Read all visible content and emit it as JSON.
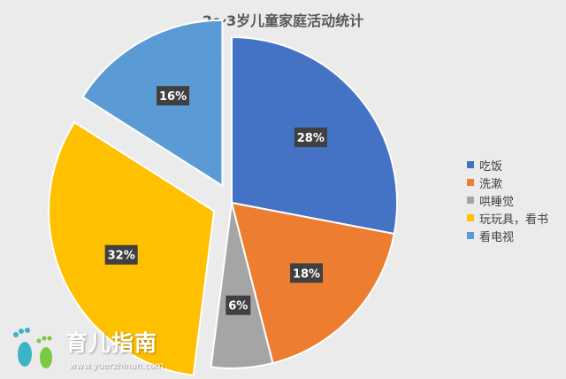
{
  "chart_data": {
    "type": "pie",
    "title": "2～3岁儿童家庭活动统计",
    "categories": [
      "吃饭",
      "洗漱",
      "哄睡觉",
      "玩玩具，看书",
      "看电视"
    ],
    "values": [
      28,
      18,
      6,
      32,
      16
    ],
    "labels": [
      "28%",
      "18%",
      "6%",
      "32%",
      "16%"
    ],
    "colors": [
      "#4472c4",
      "#ed7d31",
      "#a5a5a5",
      "#ffc000",
      "#5b9bd5"
    ],
    "exploded": [
      false,
      false,
      false,
      true,
      true
    ],
    "legend_position": "right"
  },
  "watermark": {
    "text": "育儿指南",
    "url": "www.yuerzhinan.com",
    "icon": "footprints-icon"
  }
}
